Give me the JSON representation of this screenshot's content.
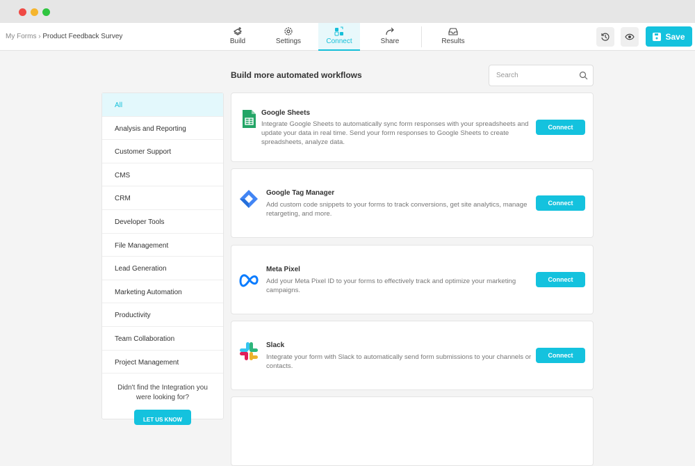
{
  "breadcrumb": {
    "root": "My Forms",
    "separator": "›",
    "current": "Product Feedback Survey"
  },
  "tabs": [
    {
      "label": "Build",
      "icon": "build-icon"
    },
    {
      "label": "Settings",
      "icon": "gear-icon"
    },
    {
      "label": "Connect",
      "icon": "connect-icon",
      "active": true
    },
    {
      "label": "Share",
      "icon": "share-icon"
    },
    {
      "label": "Results",
      "icon": "inbox-icon"
    }
  ],
  "actions": {
    "save_label": "Save"
  },
  "main": {
    "heading": "Build more automated workflows",
    "search_placeholder": "Search"
  },
  "sidebar": {
    "items": [
      "All",
      "Analysis and Reporting",
      "Customer Support",
      "CMS",
      "CRM",
      "Developer Tools",
      "File Management",
      "Lead Generation",
      "Marketing Automation",
      "Productivity",
      "Team Collaboration",
      "Project Management"
    ],
    "help_text": "Didn't find the Integration you were looking for?",
    "help_button": "LET US KNOW"
  },
  "integrations": [
    {
      "name": "Google Sheets",
      "description": "Integrate Google Sheets to automatically sync form responses with your spreadsheets and update your data in real time. Send your form responses to Google Sheets to create spreadsheets, analyze data.",
      "button": "Connect"
    },
    {
      "name": "Google Tag Manager",
      "description": "Add custom code snippets to your forms to track conversions, get site analytics, manage retargeting, and more.",
      "button": "Connect"
    },
    {
      "name": "Meta Pixel",
      "description": "Add your Meta Pixel ID to your forms to effectively track and optimize your marketing campaigns.",
      "button": "Connect"
    },
    {
      "name": "Slack",
      "description": "Integrate your form with Slack to automatically send form submissions to your channels or contacts.",
      "button": "Connect"
    }
  ],
  "colors": {
    "accent": "#14c2de",
    "active_bg": "#e3f8fc"
  }
}
